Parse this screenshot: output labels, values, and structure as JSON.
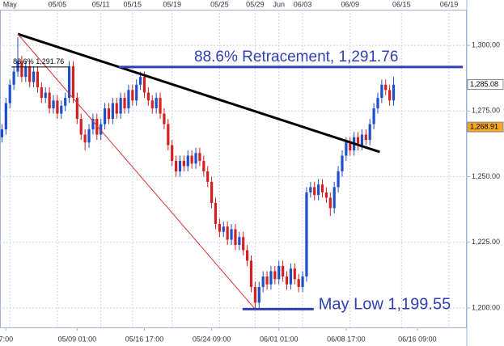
{
  "chart_data": {
    "type": "candlestick",
    "top_categories": [
      null,
      null,
      "May",
      null,
      null,
      null,
      null,
      null,
      null,
      null,
      null,
      null,
      null,
      null,
      "05/05",
      null,
      null,
      null,
      null,
      null,
      null,
      null,
      null,
      null,
      null,
      "05/11",
      null,
      null,
      null,
      null,
      null,
      null,
      null,
      "05/15",
      null,
      null,
      null,
      null,
      null,
      null,
      null,
      null,
      null,
      "05/19",
      null,
      null,
      null,
      null,
      null,
      null,
      null,
      null,
      null,
      null,
      null,
      "05/25",
      null,
      null,
      null,
      null,
      null,
      null,
      null,
      null,
      "05/29",
      null,
      null,
      null,
      null,
      null,
      "Jun",
      null,
      null,
      null,
      null,
      null,
      "06/03",
      null,
      null,
      null,
      null,
      null,
      null,
      null,
      null,
      null,
      null,
      null,
      "06/09",
      null,
      null,
      null,
      null,
      null,
      null,
      null,
      null,
      null,
      null,
      null,
      null,
      "06/15",
      null,
      null,
      null,
      null,
      null,
      null,
      null,
      null,
      null,
      null,
      null,
      "06/19",
      null,
      null,
      null,
      null
    ],
    "categories": [
      null,
      "7:00",
      null,
      null,
      null,
      null,
      null,
      null,
      null,
      null,
      null,
      null,
      null,
      null,
      null,
      null,
      null,
      null,
      null,
      "05/09 01:00",
      null,
      null,
      null,
      null,
      null,
      null,
      null,
      null,
      null,
      null,
      null,
      null,
      null,
      null,
      null,
      null,
      "05/16 17:00",
      null,
      null,
      null,
      null,
      null,
      null,
      null,
      null,
      null,
      null,
      null,
      null,
      null,
      null,
      null,
      null,
      "05/24 09:00",
      null,
      null,
      null,
      null,
      null,
      null,
      null,
      null,
      null,
      null,
      null,
      null,
      null,
      null,
      null,
      null,
      "06/01 01:00",
      null,
      null,
      null,
      null,
      null,
      null,
      null,
      null,
      null,
      null,
      null,
      null,
      null,
      null,
      null,
      null,
      "06/08 17:00",
      null,
      null,
      null,
      null,
      null,
      null,
      null,
      null,
      null,
      null,
      null,
      null,
      null,
      null,
      null,
      null,
      null,
      "06/16 09:00",
      null,
      null,
      null,
      null,
      null,
      null,
      null,
      null,
      null,
      null,
      null,
      null
    ],
    "open": [
      1265,
      1268,
      1278,
      1285,
      1290,
      1294,
      1288,
      1292,
      1286,
      1290,
      1284,
      1280,
      1282,
      1276,
      1279,
      1274,
      1277,
      1280,
      1292,
      1280,
      1272,
      1266,
      1263,
      1268,
      1272,
      1266,
      1270,
      1276,
      1272,
      1278,
      1274,
      1280,
      1276,
      1283,
      1279,
      1285,
      1288,
      1282,
      1279,
      1276,
      1280,
      1274,
      1270,
      1262,
      1256,
      1252,
      1256,
      1254,
      1258,
      1255,
      1259,
      1256,
      1252,
      1248,
      1240,
      1232,
      1229,
      1231,
      1226,
      1230,
      1224,
      1227,
      1222,
      1218,
      1208,
      1202,
      1208,
      1212,
      1209,
      1214,
      1211,
      1216,
      1212,
      1209,
      1215,
      1211,
      1208,
      1212,
      1244,
      1246,
      1243,
      1247,
      1244,
      1242,
      1238,
      1246,
      1252,
      1258,
      1263,
      1260,
      1265,
      1262,
      1266,
      1264,
      1270,
      1276,
      1280,
      1285,
      1283,
      1279,
      null,
      null,
      null,
      null,
      null,
      null,
      null,
      null,
      null,
      null,
      null,
      null,
      null,
      null,
      null,
      null,
      null,
      null
    ],
    "high": [
      1270,
      1280,
      1287,
      1292,
      1303,
      1296,
      1294,
      1294,
      1292,
      1292,
      1286,
      1284,
      1284,
      1281,
      1281,
      1279,
      1282,
      1294,
      1294,
      1282,
      1274,
      1268,
      1270,
      1274,
      1274,
      1272,
      1278,
      1278,
      1280,
      1280,
      1282,
      1282,
      1285,
      1285,
      1287,
      1290,
      1290,
      1284,
      1281,
      1282,
      1282,
      1276,
      1272,
      1264,
      1258,
      1258,
      1258,
      1260,
      1260,
      1261,
      1261,
      1258,
      1254,
      1250,
      1242,
      1234,
      1233,
      1233,
      1232,
      1232,
      1229,
      1229,
      1224,
      1220,
      1210,
      1210,
      1214,
      1214,
      1216,
      1216,
      1218,
      1218,
      1214,
      1217,
      1217,
      1213,
      1214,
      1246,
      1248,
      1248,
      1249,
      1249,
      1246,
      1244,
      1248,
      1254,
      1260,
      1265,
      1265,
      1267,
      1267,
      1268,
      1268,
      1272,
      1278,
      1282,
      1287,
      1287,
      1285,
      1288,
      null,
      null,
      null,
      null,
      null,
      null,
      null,
      null,
      null,
      null,
      null,
      null,
      null,
      null,
      null,
      null,
      null,
      null
    ],
    "low": [
      1263,
      1266,
      1276,
      1283,
      1288,
      1286,
      1286,
      1284,
      1284,
      1282,
      1278,
      1278,
      1274,
      1274,
      1272,
      1272,
      1275,
      1278,
      1278,
      1270,
      1264,
      1260,
      1261,
      1266,
      1264,
      1264,
      1268,
      1270,
      1270,
      1272,
      1272,
      1274,
      1274,
      1277,
      1277,
      1283,
      1280,
      1277,
      1274,
      1274,
      1272,
      1268,
      1260,
      1254,
      1250,
      1250,
      1252,
      1252,
      1253,
      1253,
      1254,
      1250,
      1246,
      1238,
      1230,
      1227,
      1227,
      1224,
      1224,
      1222,
      1222,
      1220,
      1216,
      1206,
      1199.55,
      1200,
      1206,
      1207,
      1207,
      1209,
      1209,
      1210,
      1207,
      1207,
      1209,
      1206,
      1206,
      1210,
      1242,
      1241,
      1241,
      1242,
      1240,
      1235,
      1236,
      1244,
      1250,
      1256,
      1258,
      1258,
      1260,
      1260,
      1262,
      1262,
      1268,
      1274,
      1278,
      1281,
      1277,
      1277,
      null,
      null,
      null,
      null,
      null,
      null,
      null,
      null,
      null,
      null,
      null,
      null,
      null,
      null,
      null,
      null,
      null,
      null
    ],
    "close": [
      1268,
      1278,
      1285,
      1290,
      1294,
      1288,
      1292,
      1286,
      1290,
      1284,
      1280,
      1282,
      1276,
      1279,
      1274,
      1277,
      1280,
      1292,
      1280,
      1272,
      1266,
      1263,
      1268,
      1272,
      1266,
      1270,
      1276,
      1272,
      1278,
      1274,
      1280,
      1276,
      1283,
      1279,
      1285,
      1288,
      1282,
      1279,
      1276,
      1280,
      1274,
      1270,
      1262,
      1256,
      1252,
      1256,
      1254,
      1258,
      1255,
      1259,
      1256,
      1252,
      1248,
      1240,
      1232,
      1229,
      1231,
      1226,
      1230,
      1224,
      1227,
      1222,
      1218,
      1208,
      1202,
      1208,
      1212,
      1209,
      1214,
      1211,
      1216,
      1212,
      1209,
      1215,
      1211,
      1208,
      1212,
      1244,
      1246,
      1243,
      1247,
      1244,
      1242,
      1238,
      1246,
      1252,
      1258,
      1263,
      1260,
      1265,
      1262,
      1266,
      1264,
      1270,
      1276,
      1280,
      1285,
      1283,
      1279,
      1285,
      null,
      null,
      null,
      null,
      null,
      null,
      null,
      null,
      null,
      null,
      null,
      null,
      null,
      null,
      null,
      null,
      null,
      null
    ],
    "up_color": "#1f4fc8",
    "down_color": "#d42020",
    "ylim": [
      1192.6,
      1314.8
    ],
    "yticks": [
      {
        "value": 1200,
        "label": "1,200.00"
      },
      {
        "value": 1225,
        "label": "1,225.00"
      },
      {
        "value": 1250,
        "label": "1,250.00"
      },
      {
        "value": 1275,
        "label": "1,275.00"
      },
      {
        "value": 1300,
        "label": "1,300.00"
      }
    ],
    "grid": true,
    "price_tags": [
      {
        "value": 1285.08,
        "label": "1,285.08",
        "color": "#ffffff"
      },
      {
        "value": 1268.91,
        "label": "1,268.91",
        "color": "#f5a623"
      }
    ],
    "trendlines": [
      {
        "x": [
          4,
          95.5
        ],
        "y": [
          1304.3,
          1259.4
        ],
        "color": "#000000",
        "width": 3
      },
      {
        "x": [
          4,
          64
        ],
        "y": [
          1304.3,
          1199.55
        ],
        "color": "#e03030",
        "width": 1
      }
    ],
    "levels": [
      {
        "label": "88.6% Retracement, 1,291.76",
        "value": 1291.76,
        "x": [
          29.5,
          116.5
        ],
        "color": "#3040b0",
        "width": 3
      },
      {
        "label": "May Low 1,199.55",
        "value": 1199.55,
        "x": [
          60.8,
          78.8
        ],
        "color": "#3040b0",
        "width": 3
      },
      {
        "label": "88.6% 1,291.76",
        "value": 1291.76,
        "x": [
          2.4,
          16.9
        ],
        "color": "#000000",
        "width": 1
      }
    ]
  }
}
